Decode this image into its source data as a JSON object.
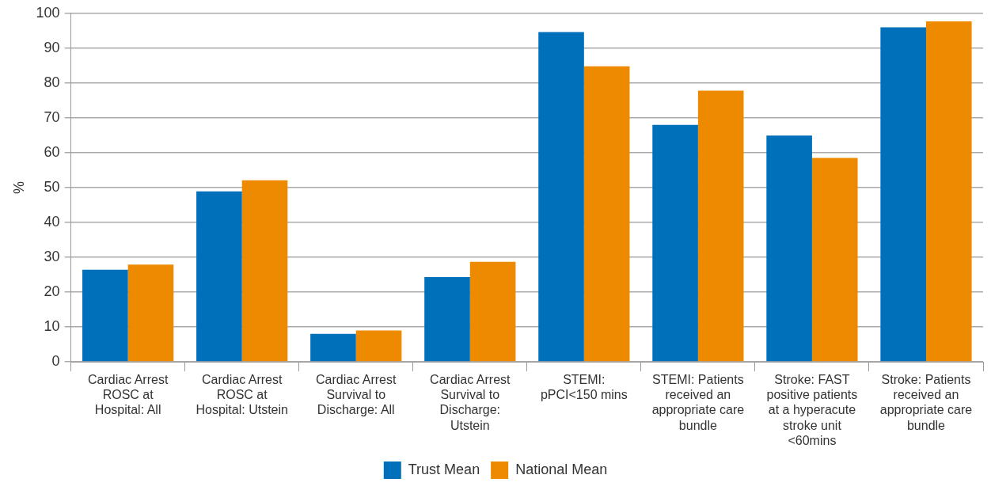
{
  "chart_data": {
    "type": "bar",
    "ylabel": "%",
    "categories": [
      "Cardiac Arrest ROSC at Hospital: All",
      "Cardiac Arrest ROSC at Hospital: Utstein",
      "Cardiac Arrest Survival to Discharge: All",
      "Cardiac Arrest Survival to Discharge: Utstein",
      "STEMI: pPCI<150 mins",
      "STEMI: Patients received an appropriate care bundle",
      "Stroke: FAST positive patients at a hyperacute stroke unit <60mins",
      "Stroke: Patients received an appropriate care bundle"
    ],
    "series": [
      {
        "name": "Trust Mean",
        "color": "#0070bb",
        "values": [
          26.4,
          48.9,
          8.0,
          24.3,
          94.6,
          68.0,
          64.9,
          96.0
        ]
      },
      {
        "name": "National Mean",
        "color": "#ee8a00",
        "values": [
          27.9,
          52.1,
          9.0,
          28.7,
          84.8,
          77.8,
          58.5,
          97.7
        ]
      }
    ],
    "ylim": [
      0,
      100
    ],
    "yticks": [
      0,
      10,
      20,
      30,
      40,
      50,
      60,
      70,
      80,
      90,
      100
    ],
    "grid": "y",
    "legend": "bottom"
  }
}
